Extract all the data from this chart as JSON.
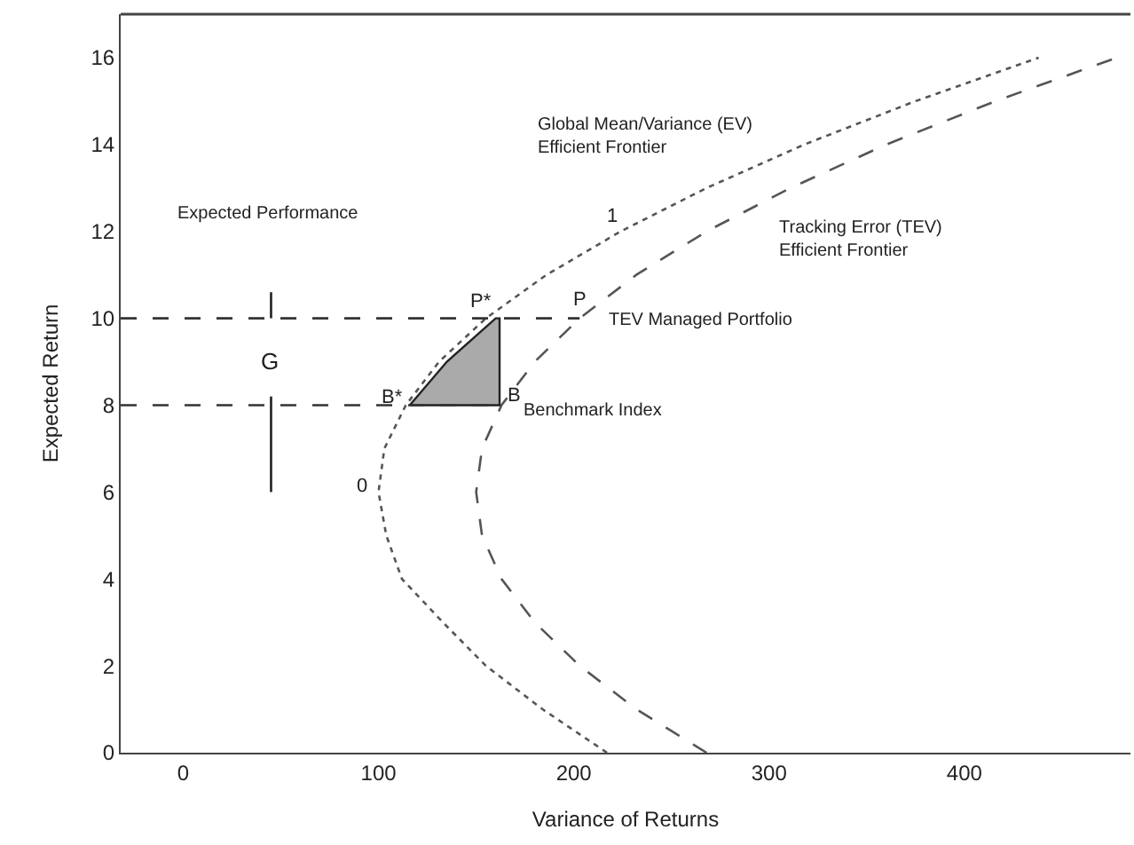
{
  "chart_data": {
    "type": "line",
    "xlabel": "Variance of Returns",
    "ylabel": "Expected Return",
    "xlim": [
      -32,
      485
    ],
    "ylim": [
      0,
      17
    ],
    "xticks": [
      0,
      100,
      200,
      300,
      400
    ],
    "yticks": [
      0,
      2,
      4,
      6,
      8,
      10,
      12,
      14,
      16
    ],
    "series": [
      {
        "color": "#555555",
        "line_style": "dotted",
        "x": [
          217,
          184,
          155,
          133,
          112,
          104,
          100,
          103,
          114,
          131,
          155,
          186,
          224,
          268,
          318,
          375,
          438
        ],
        "values": [
          0,
          1,
          2,
          3,
          4,
          5,
          6,
          7,
          8,
          9,
          10,
          11,
          12,
          13,
          14,
          15,
          16
        ]
      },
      {
        "color": "#555555",
        "line_style": "dashed",
        "x": [
          268,
          232,
          203,
          180,
          163,
          153,
          150,
          153,
          163,
          180,
          203,
          232,
          268,
          311,
          360,
          416,
          478
        ],
        "values": [
          0,
          1,
          2,
          3,
          4,
          5,
          6,
          7,
          8,
          9,
          10,
          11,
          12,
          13,
          14,
          15,
          16
        ]
      },
      {
        "type": "area",
        "color": "#aaaaaa",
        "x": [
          116,
          135,
          160,
          162,
          162,
          116
        ],
        "values": [
          8,
          9,
          10,
          10,
          8,
          8
        ]
      },
      {
        "color": "#333333",
        "line_style": "dashed",
        "x": [
          -32,
          203
        ],
        "values": [
          10,
          10
        ]
      },
      {
        "color": "#333333",
        "line_style": "dashed",
        "x": [
          -32,
          164
        ],
        "values": [
          8,
          8
        ]
      },
      {
        "color": "#222222",
        "line_style": "solid",
        "x": [
          45,
          45
        ],
        "values": [
          6,
          8.2
        ]
      },
      {
        "color": "#222222",
        "line_style": "solid",
        "x": [
          45,
          45
        ],
        "values": [
          10.6,
          10
        ]
      }
    ],
    "annotations": [
      "Global Mean/Variance (EV)\nEfficient Frontier",
      "Tracking Error (TEV)\nEfficient Frontier",
      "TEV Managed Portfolio",
      "Benchmark Index",
      "Expected Performance",
      "G",
      {
        "text": "P*",
        "x": 160,
        "y": 10
      },
      {
        "text": "B*",
        "x": 116,
        "y": 8
      },
      {
        "text": "B",
        "x": 162,
        "y": 8
      },
      {
        "text": "P",
        "x": 203,
        "y": 10
      },
      {
        "text": "1",
        "x": 224,
        "y": 12
      },
      {
        "text": "0",
        "x": 100,
        "y": 6
      }
    ]
  }
}
